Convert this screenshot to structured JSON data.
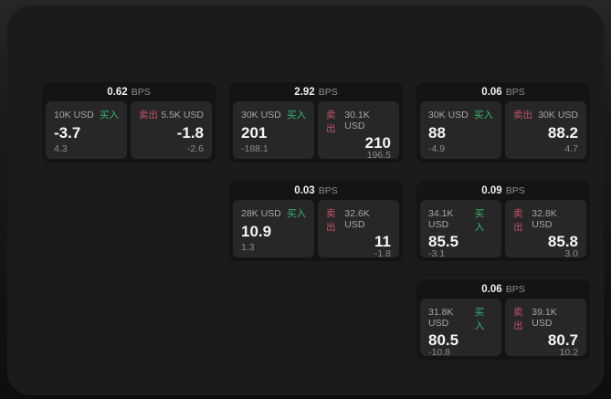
{
  "labels": {
    "bps_suffix": "BPS",
    "buy": "买入",
    "sell": "卖出"
  },
  "colors": {
    "buy_green": "#36b96d",
    "sell_red": "#c4546a",
    "window_bg": "#1b1b1b",
    "card_bg": "#141414",
    "tile_bg": "#272727"
  },
  "cards": [
    {
      "bps": "0.62",
      "buy": {
        "amount": "10K USD",
        "value": "-3.7",
        "sub": "4.3"
      },
      "sell": {
        "amount": "5.5K USD",
        "value": "-1.8",
        "sub": "-2.6"
      }
    },
    {
      "bps": "2.92",
      "buy": {
        "amount": "30K USD",
        "value": "201",
        "sub": "-188.1"
      },
      "sell": {
        "amount": "30.1K USD",
        "value": "210",
        "sub": "196.5"
      }
    },
    {
      "bps": "0.06",
      "buy": {
        "amount": "30K USD",
        "value": "88",
        "sub": "-4.9"
      },
      "sell": {
        "amount": "30K USD",
        "value": "88.2",
        "sub": "4.7"
      }
    },
    {
      "bps": "0.03",
      "buy": {
        "amount": "28K USD",
        "value": "10.9",
        "sub": "1.3"
      },
      "sell": {
        "amount": "32.6K USD",
        "value": "11",
        "sub": "-1.8"
      }
    },
    {
      "bps": "0.09",
      "buy": {
        "amount": "34.1K USD",
        "value": "85.5",
        "sub": "-3.1"
      },
      "sell": {
        "amount": "32.8K USD",
        "value": "85.8",
        "sub": "3.0"
      }
    },
    {
      "bps": "0.06",
      "buy": {
        "amount": "31.8K USD",
        "value": "80.5",
        "sub": "-10.8"
      },
      "sell": {
        "amount": "39.1K USD",
        "value": "80.7",
        "sub": "10.2"
      }
    }
  ]
}
